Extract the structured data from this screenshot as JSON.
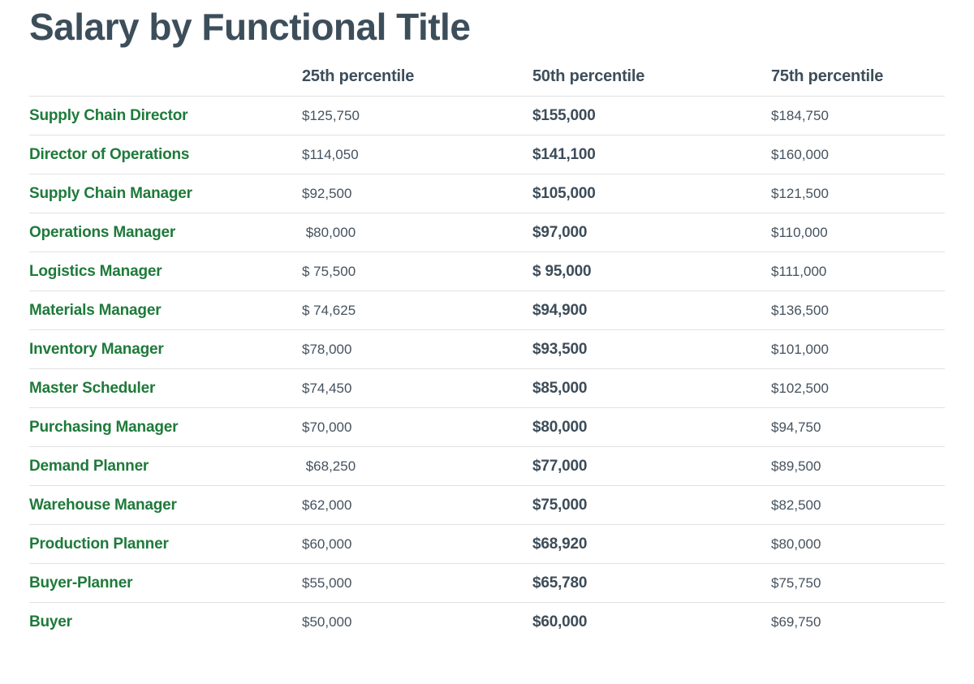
{
  "page": {
    "title": "Salary by Functional Title"
  },
  "colors": {
    "heading_slate": "#3d4e5b",
    "value_slate": "#45525e",
    "row_title_green": "#1e7a3a",
    "divider_gray": "#e2e2e2",
    "background": "#ffffff"
  },
  "table": {
    "columns": [
      "25th percentile",
      "50th percentile",
      "75th percentile"
    ],
    "rows": [
      {
        "title": "Supply Chain Director",
        "p25": "$125,750",
        "p50": "$155,000",
        "p75": "$184,750"
      },
      {
        "title": "Director of Operations",
        "p25": "$114,050",
        "p50": "$141,100",
        "p75": "$160,000"
      },
      {
        "title": "Supply Chain Manager",
        "p25": "$92,500",
        "p50": "$105,000",
        "p75": "$121,500"
      },
      {
        "title": "Operations Manager",
        "p25": " $80,000",
        "p50": "$97,000",
        "p75": "$110,000"
      },
      {
        "title": "Logistics Manager",
        "p25": "$ 75,500",
        "p50": "$ 95,000",
        "p75": "$111,000"
      },
      {
        "title": "Materials Manager",
        "p25": "$ 74,625",
        "p50": "$94,900",
        "p75": "$136,500"
      },
      {
        "title": "Inventory Manager",
        "p25": "$78,000",
        "p50": "$93,500",
        "p75": "$101,000"
      },
      {
        "title": "Master Scheduler",
        "p25": "$74,450",
        "p50": "$85,000",
        "p75": "$102,500"
      },
      {
        "title": "Purchasing Manager",
        "p25": "$70,000",
        "p50": "$80,000",
        "p75": "$94,750"
      },
      {
        "title": "Demand Planner",
        "p25": " $68,250",
        "p50": "$77,000",
        "p75": "$89,500"
      },
      {
        "title": "Warehouse Manager",
        "p25": "$62,000",
        "p50": "$75,000",
        "p75": "$82,500"
      },
      {
        "title": "Production Planner",
        "p25": "$60,000",
        "p50": "$68,920",
        "p75": "$80,000"
      },
      {
        "title": "Buyer-Planner",
        "p25": "$55,000",
        "p50": "$65,780",
        "p75": "$75,750"
      },
      {
        "title": "Buyer",
        "p25": "$50,000",
        "p50": "$60,000",
        "p75": "$69,750"
      }
    ]
  },
  "chart_data": {
    "type": "table",
    "title": "Salary by Functional Title",
    "categories": [
      "Supply Chain Director",
      "Director of Operations",
      "Supply Chain Manager",
      "Operations Manager",
      "Logistics Manager",
      "Materials Manager",
      "Inventory Manager",
      "Master Scheduler",
      "Purchasing Manager",
      "Demand Planner",
      "Warehouse Manager",
      "Production Planner",
      "Buyer-Planner",
      "Buyer"
    ],
    "series": [
      {
        "name": "25th percentile",
        "values": [
          125750,
          114050,
          92500,
          80000,
          75500,
          74625,
          78000,
          74450,
          70000,
          68250,
          62000,
          60000,
          55000,
          50000
        ]
      },
      {
        "name": "50th percentile",
        "values": [
          155000,
          141100,
          105000,
          97000,
          95000,
          94900,
          93500,
          85000,
          80000,
          77000,
          75000,
          68920,
          65780,
          60000
        ]
      },
      {
        "name": "75th percentile",
        "values": [
          184750,
          160000,
          121500,
          110000,
          111000,
          136500,
          101000,
          102500,
          94750,
          89500,
          82500,
          80000,
          75750,
          69750
        ]
      }
    ]
  }
}
